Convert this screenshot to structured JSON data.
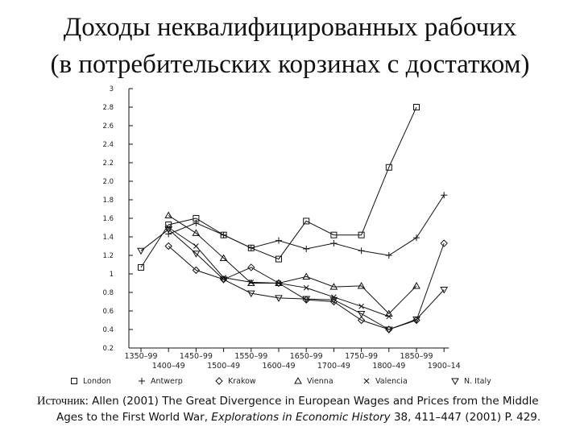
{
  "title_line1": "Доходы неквалифицированных рабочих",
  "title_line2": "(в потребительских корзинах с достатком)",
  "source": {
    "label": "Источник:",
    "text1": " Allen (2001) The Great Divergence in European Wages and Prices from the Middle",
    "text2a": "Ages to the First World War, ",
    "journal": "Explorations in Economic History",
    "text2b": " 38, 411–447 (2001) P. 429."
  },
  "chart_data": {
    "type": "line",
    "categories": [
      "1350–99",
      "1400–49",
      "1450–99",
      "1500–49",
      "1550–99",
      "1600–49",
      "1650–99",
      "1700–49",
      "1750–99",
      "1800–49",
      "1850–99",
      "1900–14"
    ],
    "x_tick_labels_row1": [
      "1350–99",
      "1450–99",
      "1550–99",
      "1650–99",
      "1750–99",
      "1850–99"
    ],
    "x_tick_labels_row2": [
      "1400–49",
      "1500–49",
      "1600–49",
      "1700–49",
      "1800–49",
      "1900–14"
    ],
    "ylim": [
      0.2,
      3.0
    ],
    "y_ticks": [
      "0.2",
      "0.4",
      "0.6",
      "0.8",
      "1",
      "1.2",
      "1.4",
      "1.6",
      "1.8",
      "2.0",
      "2.2",
      "2.4",
      "2.6",
      "2.8",
      "3"
    ],
    "grid": false,
    "legend_position": "bottom",
    "series": [
      {
        "name": "London",
        "marker": "square",
        "values": [
          1.07,
          1.53,
          1.6,
          1.42,
          1.28,
          1.16,
          1.57,
          1.42,
          1.42,
          2.15,
          2.8,
          null
        ]
      },
      {
        "name": "Antwerp",
        "marker": "plus",
        "values": [
          null,
          1.43,
          1.55,
          1.42,
          1.28,
          1.36,
          1.27,
          1.33,
          1.25,
          1.2,
          1.39,
          1.85
        ]
      },
      {
        "name": "Krakow",
        "marker": "diamond",
        "values": [
          null,
          1.3,
          1.04,
          0.94,
          1.07,
          0.9,
          0.72,
          0.7,
          0.5,
          0.4,
          0.5,
          1.33
        ]
      },
      {
        "name": "Vienna",
        "marker": "triangle",
        "values": [
          null,
          1.63,
          1.44,
          1.17,
          0.9,
          0.9,
          0.97,
          0.86,
          0.87,
          0.57,
          0.87,
          null
        ]
      },
      {
        "name": "Valencia",
        "marker": "x",
        "values": [
          null,
          1.5,
          1.3,
          0.96,
          0.91,
          0.9,
          0.85,
          0.75,
          0.65,
          0.54,
          null,
          null
        ]
      },
      {
        "name": "Northern Italy",
        "marker": "triangle-down",
        "values": [
          1.25,
          1.48,
          1.22,
          0.94,
          0.79,
          0.74,
          0.73,
          0.72,
          0.57,
          0.4,
          0.51,
          0.83
        ]
      }
    ],
    "legend_labels": [
      "London",
      "Antwerp",
      "Krakow",
      "Vienna",
      "Valencia",
      "N. Italy"
    ]
  },
  "colors": {
    "ink": "#111111",
    "axis": "#333333"
  }
}
